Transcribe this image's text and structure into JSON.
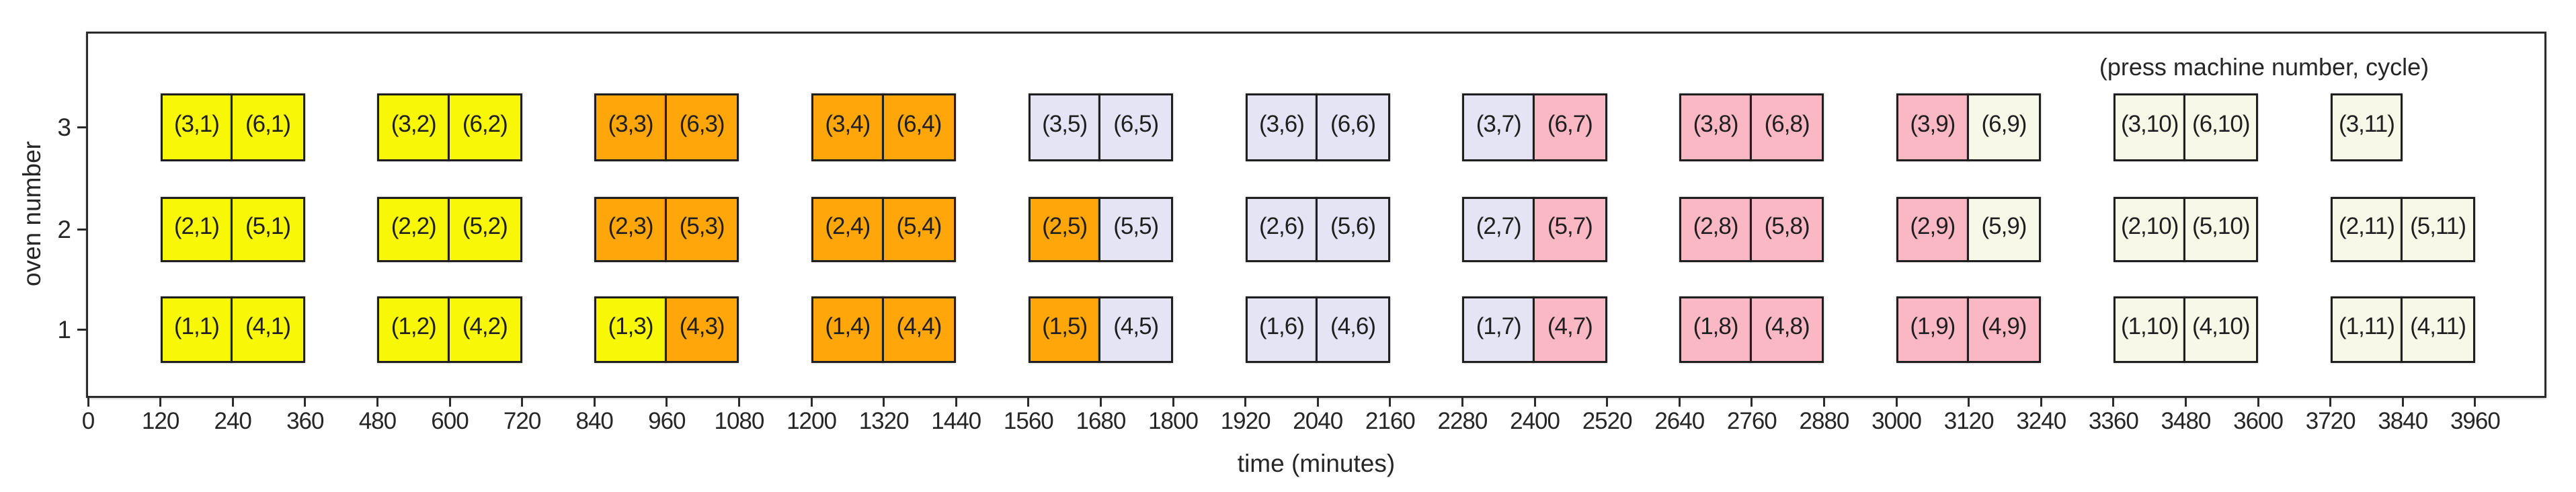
{
  "chart_data": {
    "type": "bar",
    "subtype": "gantt-schedule",
    "annotation": "(press machine number, cycle)",
    "xlabel": "time (minutes)",
    "ylabel": "oven number",
    "xlim": [
      0,
      4075
    ],
    "xticks": [
      0,
      120,
      240,
      360,
      480,
      600,
      720,
      840,
      960,
      1080,
      1200,
      1320,
      1440,
      1560,
      1680,
      1800,
      1920,
      2040,
      2160,
      2280,
      2400,
      2520,
      2640,
      2760,
      2880,
      3000,
      3120,
      3240,
      3360,
      3480,
      3600,
      3720,
      3840,
      3960
    ],
    "yticks": [
      1,
      2,
      3
    ],
    "grid": false,
    "legend": "none",
    "colors": {
      "yellow": "#f7f707",
      "orange": "#ffa60a",
      "lavender": "#e4e4f4",
      "pink": "#f9b8c4",
      "cream": "#f8f8e9",
      "edge": "#1f1f1f"
    },
    "blocks": [
      {
        "label": "(3,1)",
        "oven": 3,
        "start": 120,
        "end": 240,
        "color": "yellow"
      },
      {
        "label": "(6,1)",
        "oven": 3,
        "start": 240,
        "end": 360,
        "color": "yellow"
      },
      {
        "label": "(2,1)",
        "oven": 2,
        "start": 120,
        "end": 240,
        "color": "yellow"
      },
      {
        "label": "(5,1)",
        "oven": 2,
        "start": 240,
        "end": 360,
        "color": "yellow"
      },
      {
        "label": "(1,1)",
        "oven": 1,
        "start": 120,
        "end": 240,
        "color": "yellow"
      },
      {
        "label": "(4,1)",
        "oven": 1,
        "start": 240,
        "end": 360,
        "color": "yellow"
      },
      {
        "label": "(3,2)",
        "oven": 3,
        "start": 480,
        "end": 600,
        "color": "yellow"
      },
      {
        "label": "(6,2)",
        "oven": 3,
        "start": 600,
        "end": 720,
        "color": "yellow"
      },
      {
        "label": "(2,2)",
        "oven": 2,
        "start": 480,
        "end": 600,
        "color": "yellow"
      },
      {
        "label": "(5,2)",
        "oven": 2,
        "start": 600,
        "end": 720,
        "color": "yellow"
      },
      {
        "label": "(1,2)",
        "oven": 1,
        "start": 480,
        "end": 600,
        "color": "yellow"
      },
      {
        "label": "(4,2)",
        "oven": 1,
        "start": 600,
        "end": 720,
        "color": "yellow"
      },
      {
        "label": "(3,3)",
        "oven": 3,
        "start": 840,
        "end": 960,
        "color": "orange"
      },
      {
        "label": "(6,3)",
        "oven": 3,
        "start": 960,
        "end": 1080,
        "color": "orange"
      },
      {
        "label": "(2,3)",
        "oven": 2,
        "start": 840,
        "end": 960,
        "color": "orange"
      },
      {
        "label": "(5,3)",
        "oven": 2,
        "start": 960,
        "end": 1080,
        "color": "orange"
      },
      {
        "label": "(1,3)",
        "oven": 1,
        "start": 840,
        "end": 960,
        "color": "yellow"
      },
      {
        "label": "(4,3)",
        "oven": 1,
        "start": 960,
        "end": 1080,
        "color": "orange"
      },
      {
        "label": "(3,4)",
        "oven": 3,
        "start": 1200,
        "end": 1320,
        "color": "orange"
      },
      {
        "label": "(6,4)",
        "oven": 3,
        "start": 1320,
        "end": 1440,
        "color": "orange"
      },
      {
        "label": "(2,4)",
        "oven": 2,
        "start": 1200,
        "end": 1320,
        "color": "orange"
      },
      {
        "label": "(5,4)",
        "oven": 2,
        "start": 1320,
        "end": 1440,
        "color": "orange"
      },
      {
        "label": "(1,4)",
        "oven": 1,
        "start": 1200,
        "end": 1320,
        "color": "orange"
      },
      {
        "label": "(4,4)",
        "oven": 1,
        "start": 1320,
        "end": 1440,
        "color": "orange"
      },
      {
        "label": "(3,5)",
        "oven": 3,
        "start": 1560,
        "end": 1680,
        "color": "lavender"
      },
      {
        "label": "(6,5)",
        "oven": 3,
        "start": 1680,
        "end": 1800,
        "color": "lavender"
      },
      {
        "label": "(2,5)",
        "oven": 2,
        "start": 1560,
        "end": 1680,
        "color": "orange"
      },
      {
        "label": "(5,5)",
        "oven": 2,
        "start": 1680,
        "end": 1800,
        "color": "lavender"
      },
      {
        "label": "(1,5)",
        "oven": 1,
        "start": 1560,
        "end": 1680,
        "color": "orange"
      },
      {
        "label": "(4,5)",
        "oven": 1,
        "start": 1680,
        "end": 1800,
        "color": "lavender"
      },
      {
        "label": "(3,6)",
        "oven": 3,
        "start": 1920,
        "end": 2040,
        "color": "lavender"
      },
      {
        "label": "(6,6)",
        "oven": 3,
        "start": 2040,
        "end": 2160,
        "color": "lavender"
      },
      {
        "label": "(2,6)",
        "oven": 2,
        "start": 1920,
        "end": 2040,
        "color": "lavender"
      },
      {
        "label": "(5,6)",
        "oven": 2,
        "start": 2040,
        "end": 2160,
        "color": "lavender"
      },
      {
        "label": "(1,6)",
        "oven": 1,
        "start": 1920,
        "end": 2040,
        "color": "lavender"
      },
      {
        "label": "(4,6)",
        "oven": 1,
        "start": 2040,
        "end": 2160,
        "color": "lavender"
      },
      {
        "label": "(3,7)",
        "oven": 3,
        "start": 2280,
        "end": 2400,
        "color": "lavender"
      },
      {
        "label": "(6,7)",
        "oven": 3,
        "start": 2400,
        "end": 2520,
        "color": "pink"
      },
      {
        "label": "(2,7)",
        "oven": 2,
        "start": 2280,
        "end": 2400,
        "color": "lavender"
      },
      {
        "label": "(5,7)",
        "oven": 2,
        "start": 2400,
        "end": 2520,
        "color": "pink"
      },
      {
        "label": "(1,7)",
        "oven": 1,
        "start": 2280,
        "end": 2400,
        "color": "lavender"
      },
      {
        "label": "(4,7)",
        "oven": 1,
        "start": 2400,
        "end": 2520,
        "color": "pink"
      },
      {
        "label": "(3,8)",
        "oven": 3,
        "start": 2640,
        "end": 2760,
        "color": "pink"
      },
      {
        "label": "(6,8)",
        "oven": 3,
        "start": 2760,
        "end": 2880,
        "color": "pink"
      },
      {
        "label": "(2,8)",
        "oven": 2,
        "start": 2640,
        "end": 2760,
        "color": "pink"
      },
      {
        "label": "(5,8)",
        "oven": 2,
        "start": 2760,
        "end": 2880,
        "color": "pink"
      },
      {
        "label": "(1,8)",
        "oven": 1,
        "start": 2640,
        "end": 2760,
        "color": "pink"
      },
      {
        "label": "(4,8)",
        "oven": 1,
        "start": 2760,
        "end": 2880,
        "color": "pink"
      },
      {
        "label": "(3,9)",
        "oven": 3,
        "start": 3000,
        "end": 3120,
        "color": "pink"
      },
      {
        "label": "(6,9)",
        "oven": 3,
        "start": 3120,
        "end": 3240,
        "color": "cream"
      },
      {
        "label": "(2,9)",
        "oven": 2,
        "start": 3000,
        "end": 3120,
        "color": "pink"
      },
      {
        "label": "(5,9)",
        "oven": 2,
        "start": 3120,
        "end": 3240,
        "color": "cream"
      },
      {
        "label": "(1,9)",
        "oven": 1,
        "start": 3000,
        "end": 3120,
        "color": "pink"
      },
      {
        "label": "(4,9)",
        "oven": 1,
        "start": 3120,
        "end": 3240,
        "color": "pink"
      },
      {
        "label": "(3,10)",
        "oven": 3,
        "start": 3360,
        "end": 3480,
        "color": "cream"
      },
      {
        "label": "(6,10)",
        "oven": 3,
        "start": 3480,
        "end": 3600,
        "color": "cream"
      },
      {
        "label": "(2,10)",
        "oven": 2,
        "start": 3360,
        "end": 3480,
        "color": "cream"
      },
      {
        "label": "(5,10)",
        "oven": 2,
        "start": 3480,
        "end": 3600,
        "color": "cream"
      },
      {
        "label": "(1,10)",
        "oven": 1,
        "start": 3360,
        "end": 3480,
        "color": "cream"
      },
      {
        "label": "(4,10)",
        "oven": 1,
        "start": 3480,
        "end": 3600,
        "color": "cream"
      },
      {
        "label": "(3,11)",
        "oven": 3,
        "start": 3720,
        "end": 3840,
        "color": "cream"
      },
      {
        "label": "(2,11)",
        "oven": 2,
        "start": 3720,
        "end": 3840,
        "color": "cream"
      },
      {
        "label": "(5,11)",
        "oven": 2,
        "start": 3840,
        "end": 3960,
        "color": "cream"
      },
      {
        "label": "(1,11)",
        "oven": 1,
        "start": 3720,
        "end": 3840,
        "color": "cream"
      },
      {
        "label": "(4,11)",
        "oven": 1,
        "start": 3840,
        "end": 3960,
        "color": "cream"
      }
    ]
  }
}
